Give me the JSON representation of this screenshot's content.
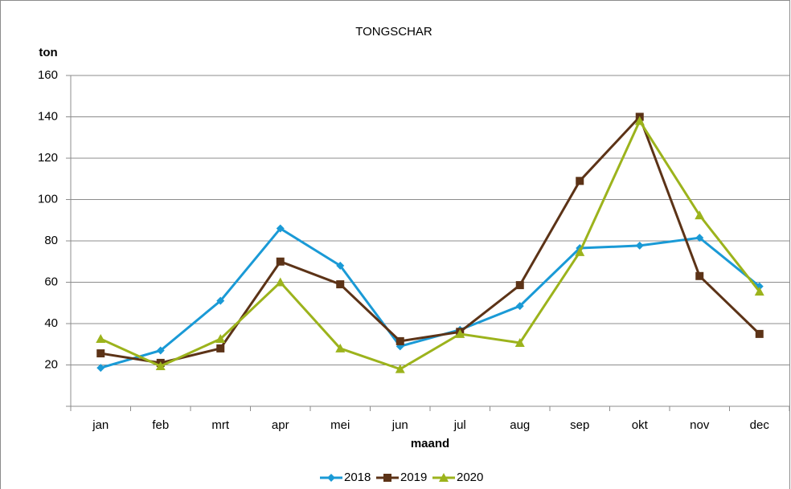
{
  "chart_data": {
    "type": "line",
    "title": "TONGSCHAR",
    "ylabel": "ton",
    "xlabel": "maand",
    "categories": [
      "jan",
      "feb",
      "mrt",
      "apr",
      "mei",
      "jun",
      "jul",
      "aug",
      "sep",
      "okt",
      "nov",
      "dec"
    ],
    "series": [
      {
        "name": "2018",
        "color": "#1a9ad6",
        "marker": "diamond",
        "values": [
          18.6,
          27,
          51,
          86,
          68,
          29,
          37,
          48.5,
          76.5,
          77.7,
          81.5,
          58
        ]
      },
      {
        "name": "2019",
        "color": "#5c3317",
        "marker": "square",
        "values": [
          25.6,
          21,
          28,
          70,
          59,
          31.5,
          36,
          58.6,
          109,
          140,
          63,
          35
        ]
      },
      {
        "name": "2020",
        "color": "#9cb31c",
        "marker": "triangle",
        "values": [
          32.6,
          19.4,
          32.6,
          60,
          28,
          18,
          35,
          30.7,
          74.6,
          138,
          92.4,
          55.5
        ]
      }
    ],
    "ylim": [
      0,
      160
    ],
    "yticks": [
      20,
      40,
      60,
      80,
      100,
      120,
      140,
      160
    ],
    "grid": true,
    "legend": "bottom"
  }
}
